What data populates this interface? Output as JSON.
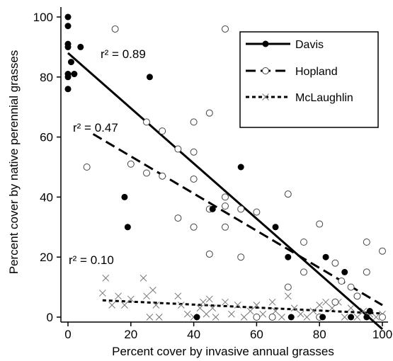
{
  "chart_data": {
    "type": "scatter",
    "xlabel": "Percent cover by invasive annual grasses",
    "ylabel": "Percent cover by native perennial grasses",
    "xlim": [
      0,
      100
    ],
    "ylim": [
      0,
      100
    ],
    "xticks": [
      "0",
      "20",
      "40",
      "60",
      "80",
      "100"
    ],
    "yticks": [
      "0",
      "20",
      "40",
      "60",
      "80",
      "100"
    ],
    "grid": false,
    "legend_position": "top-right",
    "series": [
      {
        "name": "Davis",
        "marker": "filled-circle",
        "line_style": "solid",
        "color": "#000000",
        "r2_label": "r² = 0.89",
        "fit": {
          "x": [
            0,
            100
          ],
          "y": [
            88,
            -4
          ]
        },
        "points": [
          [
            0,
            100
          ],
          [
            0,
            97
          ],
          [
            0,
            91
          ],
          [
            0,
            90
          ],
          [
            0,
            81
          ],
          [
            0,
            80
          ],
          [
            0,
            76
          ],
          [
            1,
            85
          ],
          [
            2,
            81
          ],
          [
            4,
            90
          ],
          [
            18,
            40
          ],
          [
            19,
            30
          ],
          [
            26,
            80
          ],
          [
            41,
            0
          ],
          [
            46,
            36
          ],
          [
            55,
            50
          ],
          [
            66,
            30
          ],
          [
            70,
            20
          ],
          [
            71,
            0
          ],
          [
            81,
            0
          ],
          [
            82,
            20
          ],
          [
            88,
            15
          ],
          [
            90,
            0
          ],
          [
            95,
            0
          ],
          [
            96,
            2
          ]
        ]
      },
      {
        "name": "Hopland",
        "marker": "open-circle",
        "line_style": "dashed",
        "color": "#000000",
        "r2_label": "r² = 0.47",
        "fit": {
          "x": [
            8,
            100
          ],
          "y": [
            61,
            4
          ]
        },
        "points": [
          [
            6,
            50
          ],
          [
            15,
            96
          ],
          [
            20,
            51
          ],
          [
            25,
            48
          ],
          [
            25,
            65
          ],
          [
            30,
            47
          ],
          [
            30,
            62
          ],
          [
            35,
            33
          ],
          [
            35,
            56
          ],
          [
            40,
            65
          ],
          [
            40,
            55
          ],
          [
            40,
            46
          ],
          [
            40,
            30
          ],
          [
            45,
            36
          ],
          [
            45,
            21
          ],
          [
            45,
            68
          ],
          [
            50,
            40
          ],
          [
            50,
            30
          ],
          [
            50,
            37
          ],
          [
            50,
            96
          ],
          [
            55,
            36
          ],
          [
            55,
            20
          ],
          [
            60,
            35
          ],
          [
            60,
            0
          ],
          [
            65,
            0
          ],
          [
            70,
            41
          ],
          [
            70,
            10
          ],
          [
            75,
            15
          ],
          [
            75,
            25
          ],
          [
            80,
            31
          ],
          [
            80,
            0
          ],
          [
            85,
            18
          ],
          [
            85,
            5
          ],
          [
            87,
            12
          ],
          [
            90,
            10
          ],
          [
            92,
            7
          ],
          [
            95,
            15
          ],
          [
            95,
            25
          ],
          [
            100,
            22
          ],
          [
            100,
            0
          ]
        ]
      },
      {
        "name": "McLaughlin",
        "marker": "cross",
        "line_style": "dotted",
        "color": "#000000",
        "r2_label": "r² = 0.10",
        "fit": {
          "x": [
            11,
            100
          ],
          "y": [
            5.6,
            1.2
          ]
        },
        "points": [
          [
            11,
            8
          ],
          [
            12,
            13
          ],
          [
            14,
            4
          ],
          [
            16,
            7
          ],
          [
            18,
            4
          ],
          [
            20,
            6
          ],
          [
            24,
            13
          ],
          [
            25,
            7
          ],
          [
            26,
            0
          ],
          [
            27,
            9
          ],
          [
            28,
            4
          ],
          [
            29,
            0
          ],
          [
            35,
            7
          ],
          [
            36,
            4
          ],
          [
            38,
            1
          ],
          [
            40,
            0
          ],
          [
            42,
            3
          ],
          [
            43,
            5
          ],
          [
            44,
            1
          ],
          [
            45,
            6
          ],
          [
            46,
            3
          ],
          [
            47,
            0
          ],
          [
            50,
            5
          ],
          [
            52,
            1
          ],
          [
            54,
            4
          ],
          [
            56,
            0
          ],
          [
            58,
            2
          ],
          [
            60,
            4
          ],
          [
            62,
            1
          ],
          [
            65,
            5
          ],
          [
            66,
            2
          ],
          [
            68,
            0
          ],
          [
            70,
            7
          ],
          [
            72,
            3
          ],
          [
            74,
            1
          ],
          [
            76,
            0
          ],
          [
            78,
            2
          ],
          [
            80,
            4
          ],
          [
            82,
            5
          ],
          [
            84,
            3
          ],
          [
            86,
            5
          ],
          [
            88,
            0
          ],
          [
            90,
            3
          ],
          [
            92,
            0
          ],
          [
            94,
            2
          ],
          [
            96,
            1
          ],
          [
            98,
            0
          ],
          [
            100,
            1
          ]
        ]
      }
    ]
  }
}
